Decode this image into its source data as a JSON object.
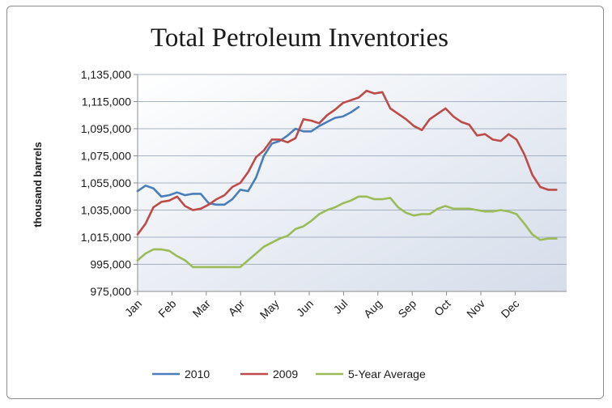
{
  "chart_data": {
    "type": "line",
    "title": "Total Petroleum Inventories",
    "ylabel": "thousand barrels",
    "xlabel": "",
    "categories": [
      "Jan",
      "Feb",
      "Mar",
      "Apr",
      "May",
      "Jun",
      "Jul",
      "Aug",
      "Sep",
      "Oct",
      "Nov",
      "Dec"
    ],
    "y_ticks": [
      "975,000",
      "995,000",
      "1,015,000",
      "1,035,000",
      "1,055,000",
      "1,075,000",
      "1,095,000",
      "1,115,000",
      "1,135,000"
    ],
    "ylim": [
      975000,
      1135000
    ],
    "xlim": [
      0,
      12.5
    ],
    "grid": "horizontal",
    "legend_position": "bottom",
    "series": [
      {
        "name": "2010",
        "color": "#4a7ebb",
        "x": [
          0,
          0.23,
          0.46,
          0.69,
          0.92,
          1.15,
          1.38,
          1.61,
          1.84,
          2.07,
          2.3,
          2.53,
          2.76,
          2.99,
          3.22,
          3.45,
          3.68,
          3.91,
          4.14,
          4.37,
          4.6,
          4.83,
          5.06,
          5.29,
          5.52,
          5.75,
          5.98,
          6.21,
          6.44
        ],
        "values": [
          1049000,
          1053000,
          1051000,
          1045000,
          1046000,
          1048000,
          1046000,
          1047000,
          1047000,
          1040000,
          1039000,
          1039000,
          1043000,
          1050000,
          1049000,
          1059000,
          1075000,
          1084000,
          1086000,
          1090000,
          1095000,
          1093000,
          1093000,
          1097000,
          1100000,
          1103000,
          1104000,
          1107000,
          1111000
        ]
      },
      {
        "name": "2009",
        "color": "#be4b48",
        "x": [
          0,
          0.23,
          0.46,
          0.69,
          0.92,
          1.15,
          1.38,
          1.61,
          1.84,
          2.07,
          2.3,
          2.53,
          2.76,
          2.99,
          3.22,
          3.45,
          3.68,
          3.91,
          4.14,
          4.37,
          4.6,
          4.83,
          5.06,
          5.29,
          5.52,
          5.75,
          5.98,
          6.21,
          6.44,
          6.67,
          6.9,
          7.13,
          7.36,
          7.59,
          7.82,
          8.05,
          8.28,
          8.51,
          8.74,
          8.97,
          9.2,
          9.43,
          9.66,
          9.89,
          10.12,
          10.35,
          10.58,
          10.81,
          11.04,
          11.27,
          11.5,
          11.73,
          11.96,
          12.2
        ],
        "values": [
          1017000,
          1025000,
          1037000,
          1041000,
          1042000,
          1045000,
          1038000,
          1035000,
          1036000,
          1039000,
          1043000,
          1046000,
          1052000,
          1055000,
          1063000,
          1074000,
          1079000,
          1087000,
          1087000,
          1085000,
          1088000,
          1102000,
          1101000,
          1099000,
          1105000,
          1109000,
          1114000,
          1116000,
          1118000,
          1123000,
          1121000,
          1122000,
          1110000,
          1106000,
          1102000,
          1097000,
          1094000,
          1102000,
          1106000,
          1110000,
          1104000,
          1100000,
          1098000,
          1090000,
          1091000,
          1087000,
          1086000,
          1091000,
          1087000,
          1076000,
          1061000,
          1052000,
          1050000,
          1050000
        ]
      },
      {
        "name": "5-Year Average",
        "color": "#9bbb59",
        "x": [
          0,
          0.23,
          0.46,
          0.69,
          0.92,
          1.15,
          1.38,
          1.61,
          1.84,
          2.07,
          2.3,
          2.53,
          2.76,
          2.99,
          3.22,
          3.45,
          3.68,
          3.91,
          4.14,
          4.37,
          4.6,
          4.83,
          5.06,
          5.29,
          5.52,
          5.75,
          5.98,
          6.21,
          6.44,
          6.67,
          6.9,
          7.13,
          7.36,
          7.59,
          7.82,
          8.05,
          8.28,
          8.51,
          8.74,
          8.97,
          9.2,
          9.43,
          9.66,
          9.89,
          10.12,
          10.35,
          10.58,
          10.81,
          11.04,
          11.27,
          11.5,
          11.73,
          11.96,
          12.2
        ],
        "values": [
          998000,
          1003000,
          1006000,
          1006000,
          1005000,
          1001000,
          998000,
          993000,
          993000,
          993000,
          993000,
          993000,
          993000,
          993000,
          998000,
          1003000,
          1008000,
          1011000,
          1014000,
          1016000,
          1021000,
          1023000,
          1027000,
          1032000,
          1035000,
          1037000,
          1040000,
          1042000,
          1045000,
          1045000,
          1043000,
          1043000,
          1044000,
          1037000,
          1033000,
          1031000,
          1032000,
          1032000,
          1036000,
          1038000,
          1036000,
          1036000,
          1036000,
          1035000,
          1034000,
          1034000,
          1035000,
          1034000,
          1032000,
          1025000,
          1017000,
          1013000,
          1014000,
          1014000
        ]
      }
    ]
  }
}
